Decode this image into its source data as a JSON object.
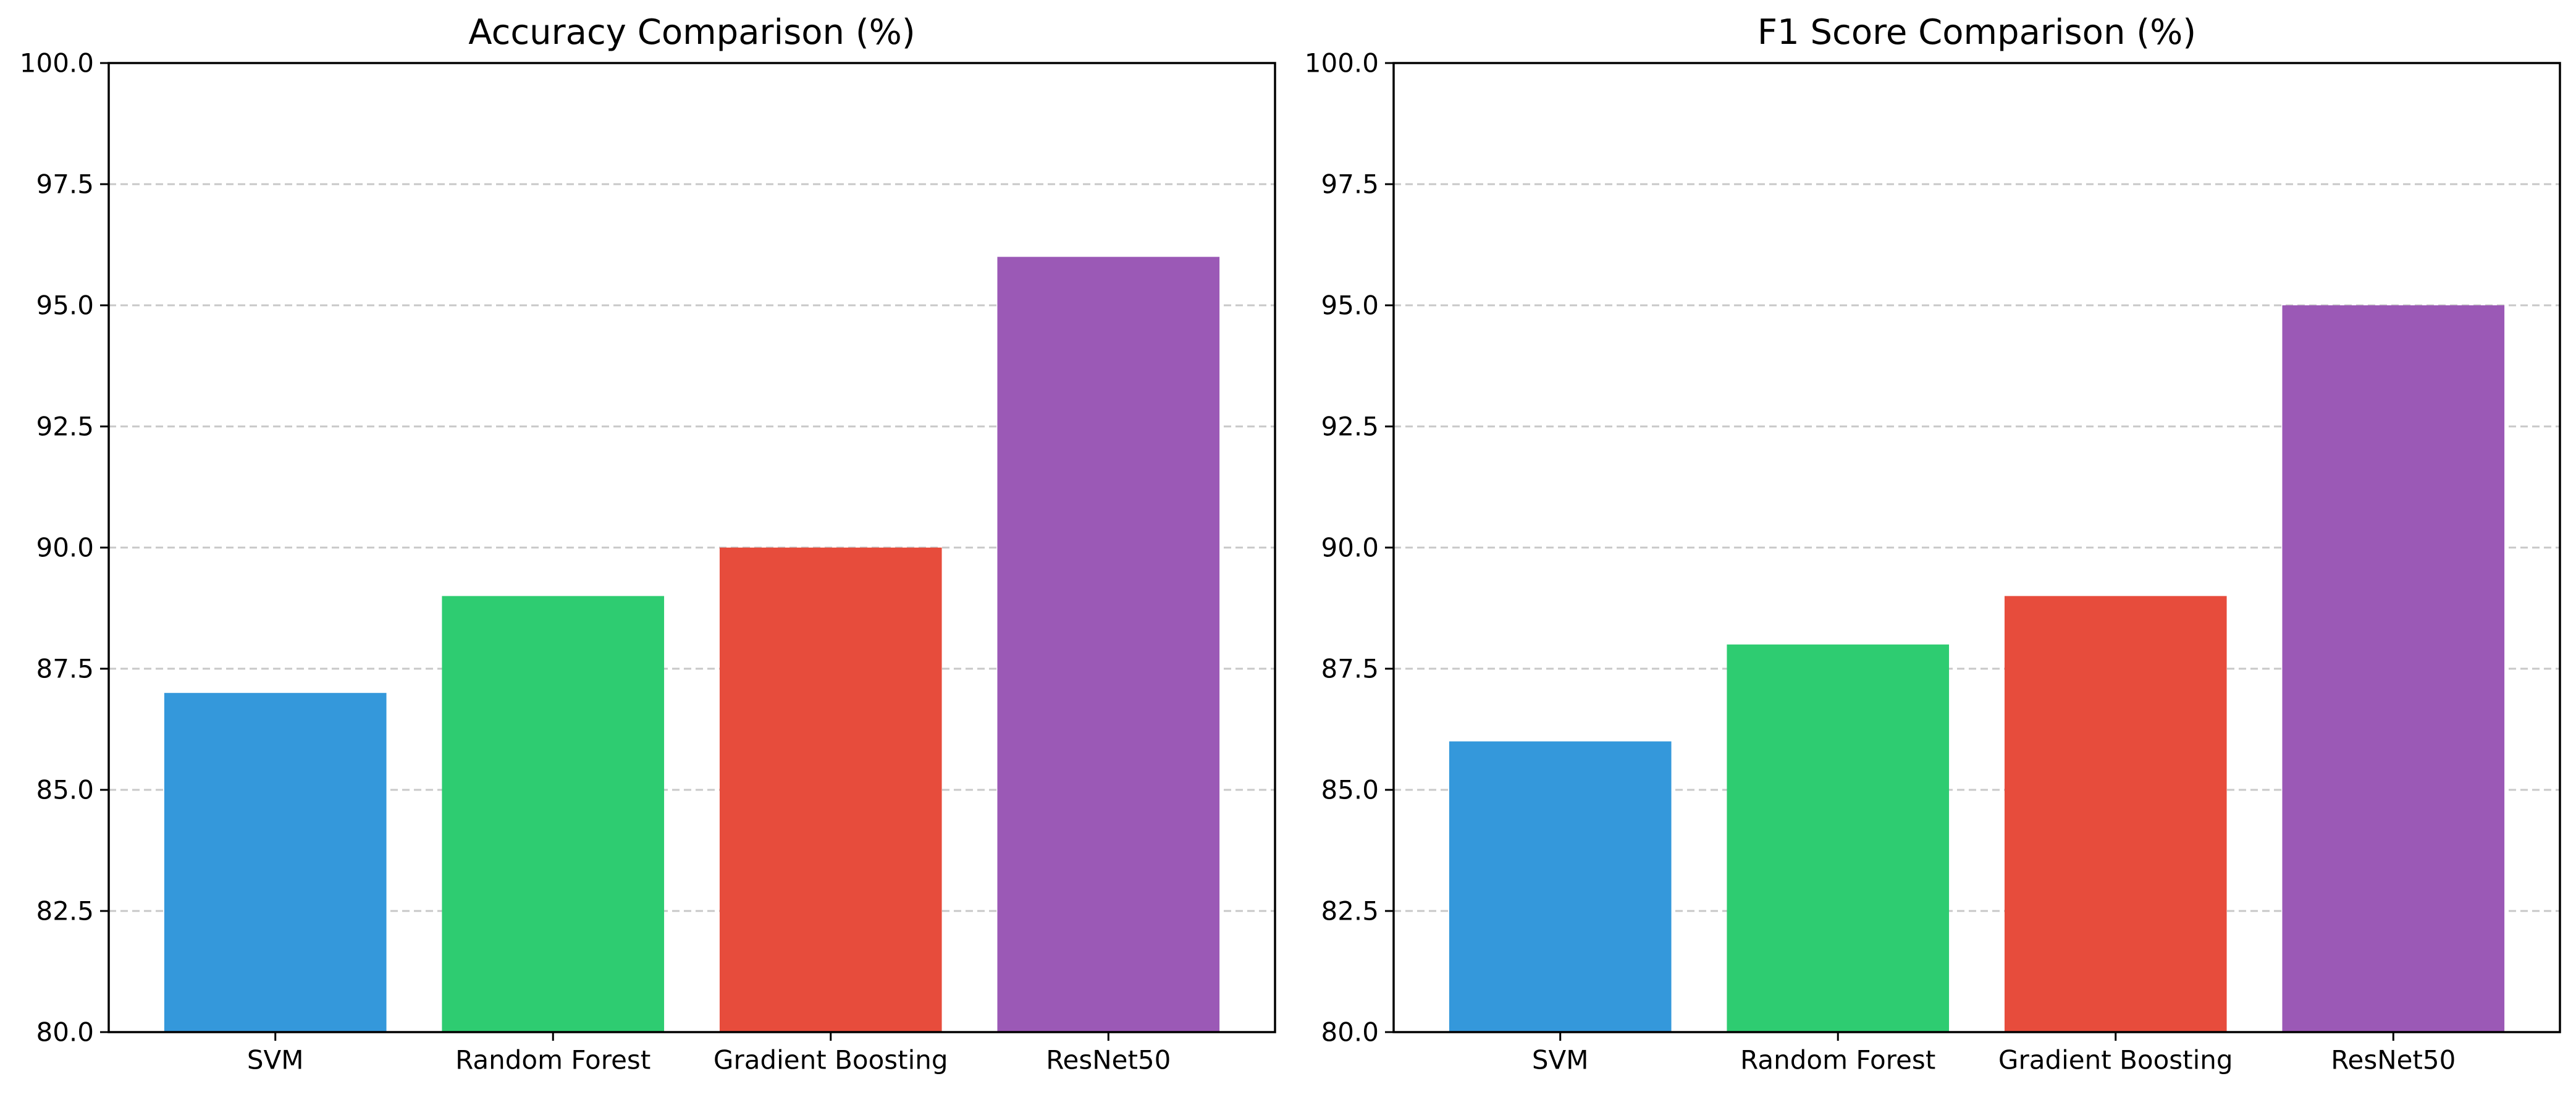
{
  "chart_data": [
    {
      "type": "bar",
      "title": "Accuracy Comparison (%)",
      "xlabel": "",
      "ylabel": "",
      "categories": [
        "SVM",
        "Random Forest",
        "Gradient Boosting",
        "ResNet50"
      ],
      "values": [
        87,
        89,
        90,
        96
      ],
      "colors": [
        "#3498db",
        "#2ecc71",
        "#e74c3c",
        "#9b59b6"
      ],
      "ylim": [
        80,
        100
      ],
      "yticks": [
        "80.0",
        "82.5",
        "85.0",
        "87.5",
        "90.0",
        "92.5",
        "95.0",
        "97.5",
        "100.0"
      ],
      "grid": "y-dashed",
      "legend": "none"
    },
    {
      "type": "bar",
      "title": "F1 Score Comparison (%)",
      "xlabel": "",
      "ylabel": "",
      "categories": [
        "SVM",
        "Random Forest",
        "Gradient Boosting",
        "ResNet50"
      ],
      "values": [
        86,
        88,
        89,
        95
      ],
      "colors": [
        "#3498db",
        "#2ecc71",
        "#e74c3c",
        "#9b59b6"
      ],
      "ylim": [
        80,
        100
      ],
      "yticks": [
        "80.0",
        "82.5",
        "85.0",
        "87.5",
        "90.0",
        "92.5",
        "95.0",
        "97.5",
        "100.0"
      ],
      "grid": "y-dashed",
      "legend": "none"
    }
  ]
}
